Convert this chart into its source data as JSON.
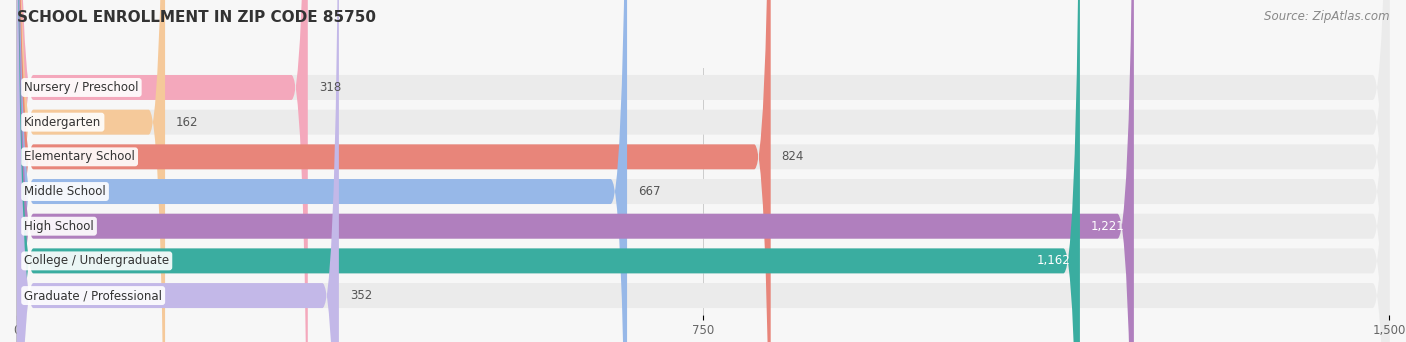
{
  "title": "SCHOOL ENROLLMENT IN ZIP CODE 85750",
  "source": "Source: ZipAtlas.com",
  "categories": [
    "Nursery / Preschool",
    "Kindergarten",
    "Elementary School",
    "Middle School",
    "High School",
    "College / Undergraduate",
    "Graduate / Professional"
  ],
  "values": [
    318,
    162,
    824,
    667,
    1221,
    1162,
    352
  ],
  "bar_colors": [
    "#f4a8bc",
    "#f5c99a",
    "#e8857a",
    "#97b8e8",
    "#b07fbe",
    "#3aada0",
    "#c3b8e8"
  ],
  "xlim": [
    0,
    1500
  ],
  "xticks": [
    0,
    750,
    1500
  ],
  "background_color": "#f7f7f7",
  "bar_background_color": "#ebebeb",
  "title_fontsize": 11,
  "label_fontsize": 8.5,
  "value_fontsize": 8.5,
  "source_fontsize": 8.5,
  "bar_height": 0.72,
  "rounding_size": 18
}
